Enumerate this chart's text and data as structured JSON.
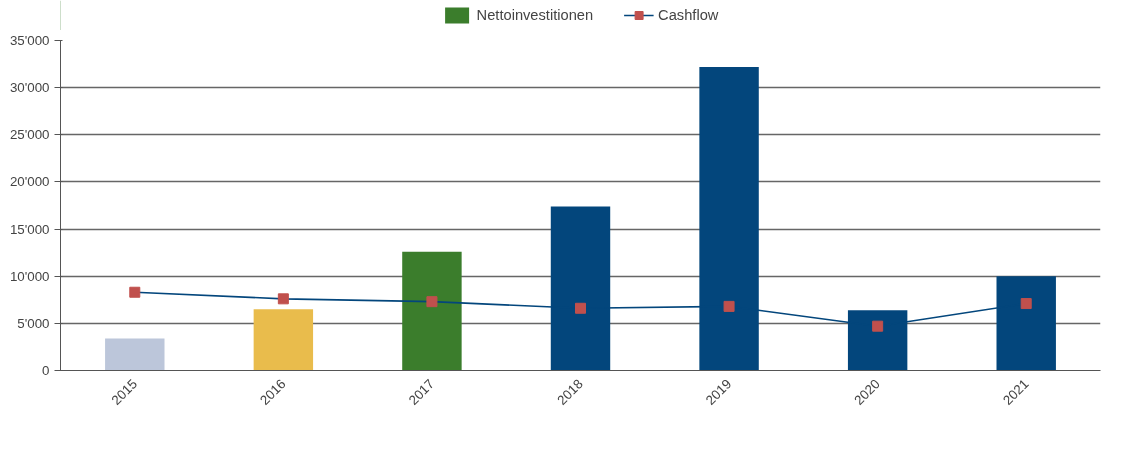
{
  "chart_data": {
    "type": "bar",
    "categories": [
      "2015",
      "2016",
      "2017",
      "2018",
      "2019",
      "2020",
      "2021"
    ],
    "series": [
      {
        "name": "Nettoinvestitionen",
        "color": "#3b7d2c",
        "colors": [
          "#bcc6da",
          "#e9bc4c",
          "#3b7d2c",
          "#03467c",
          "#03467c",
          "#03467c",
          "#03467c"
        ],
        "values": [
          3400,
          6500,
          12600,
          17400,
          32200,
          6400,
          10000
        ]
      },
      {
        "name": "Cashflow",
        "type": "line",
        "color": "#03467c",
        "colors": [
          "#c0504d",
          "#c0504d",
          "#c0504d",
          "#c0504d",
          "#c0504d",
          "#c0504d",
          "#c0504d"
        ],
        "marker": "square",
        "values": [
          8300,
          7600,
          7300,
          6600,
          6800,
          4700,
          7100
        ]
      }
    ],
    "ylim": [
      0,
      35000
    ],
    "yticks": [
      0,
      {
        "value": 5000,
        "label": "5'000"
      },
      {
        "value": 10000,
        "label": "10'000"
      },
      {
        "value": 15000,
        "label": "15'000"
      },
      {
        "value": 20000,
        "label": "20'000"
      },
      {
        "value": 25000,
        "label": "25'000"
      },
      {
        "value": 30000,
        "label": "30'000"
      },
      {
        "value": 35000,
        "label": "35'000"
      }
    ],
    "grid": "y",
    "legend": "top"
  }
}
